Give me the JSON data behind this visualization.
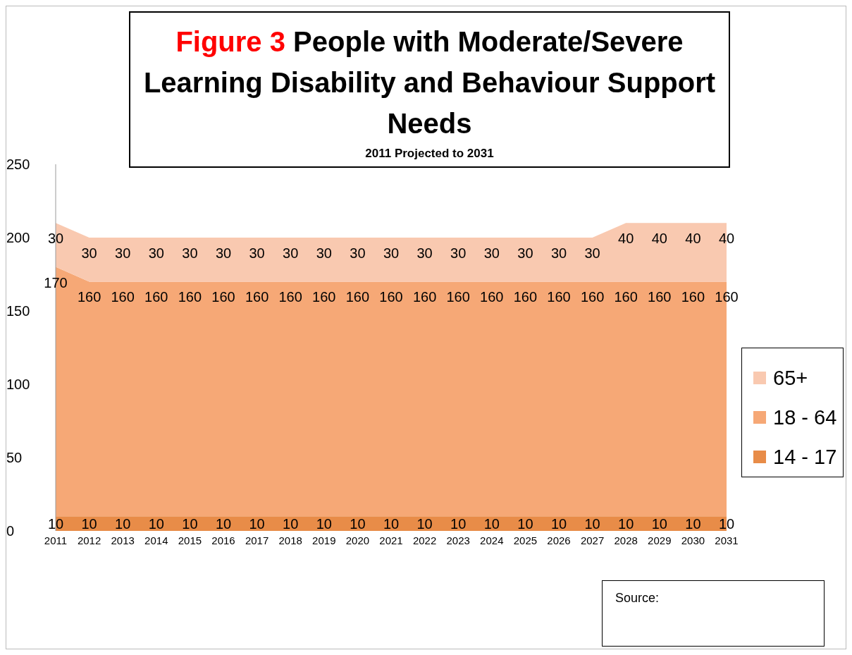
{
  "chart_data": {
    "type": "area",
    "title": "Figure 3 People with Moderate/Severe Learning Disability and Behaviour Support Needs",
    "subtitle": "2011 Projected to 2031",
    "categories": [
      "2011",
      "2012",
      "2013",
      "2014",
      "2015",
      "2016",
      "2017",
      "2018",
      "2019",
      "2020",
      "2021",
      "2022",
      "2023",
      "2024",
      "2025",
      "2026",
      "2027",
      "2028",
      "2029",
      "2030",
      "2031"
    ],
    "stacked": true,
    "ylim": [
      0,
      250
    ],
    "yticks": [
      0,
      50,
      100,
      150,
      200,
      250
    ],
    "grid": false,
    "legend": "right",
    "data_labels": true,
    "series": [
      {
        "name": "14 - 17",
        "color": "#e88c48",
        "values": [
          10,
          10,
          10,
          10,
          10,
          10,
          10,
          10,
          10,
          10,
          10,
          10,
          10,
          10,
          10,
          10,
          10,
          10,
          10,
          10,
          10
        ]
      },
      {
        "name": "18 - 64",
        "color": "#f6a876",
        "values": [
          170,
          160,
          160,
          160,
          160,
          160,
          160,
          160,
          160,
          160,
          160,
          160,
          160,
          160,
          160,
          160,
          160,
          160,
          160,
          160,
          160
        ]
      },
      {
        "name": "65+",
        "color": "#f9c9b0",
        "values": [
          30,
          30,
          30,
          30,
          30,
          30,
          30,
          30,
          30,
          30,
          30,
          30,
          30,
          30,
          30,
          30,
          30,
          40,
          40,
          40,
          40
        ]
      }
    ],
    "annotations": [
      "Source:"
    ]
  }
}
